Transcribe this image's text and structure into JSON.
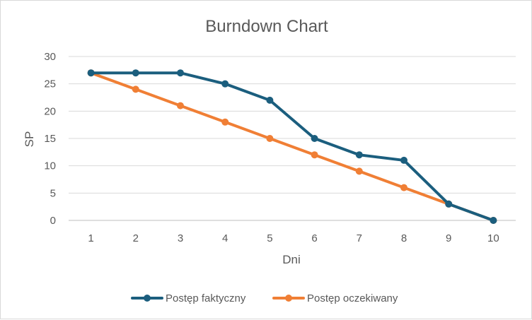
{
  "chart_data": {
    "type": "line",
    "title": "Burndown Chart",
    "xlabel": "Dni",
    "ylabel": "SP",
    "x": [
      1,
      2,
      3,
      4,
      5,
      6,
      7,
      8,
      9,
      10
    ],
    "ylim": [
      0,
      30
    ],
    "yticks": [
      0,
      5,
      10,
      15,
      20,
      25,
      30
    ],
    "grid": true,
    "legend_position": "bottom",
    "series": [
      {
        "name": "Postęp faktyczny",
        "color": "#1b5e7e",
        "values": [
          27,
          27,
          27,
          25,
          22,
          15,
          12,
          11,
          3,
          0
        ]
      },
      {
        "name": "Postęp oczekiwany",
        "color": "#f07f35",
        "values": [
          27,
          24,
          21,
          18,
          15,
          12,
          9,
          6,
          3,
          0
        ]
      }
    ]
  }
}
